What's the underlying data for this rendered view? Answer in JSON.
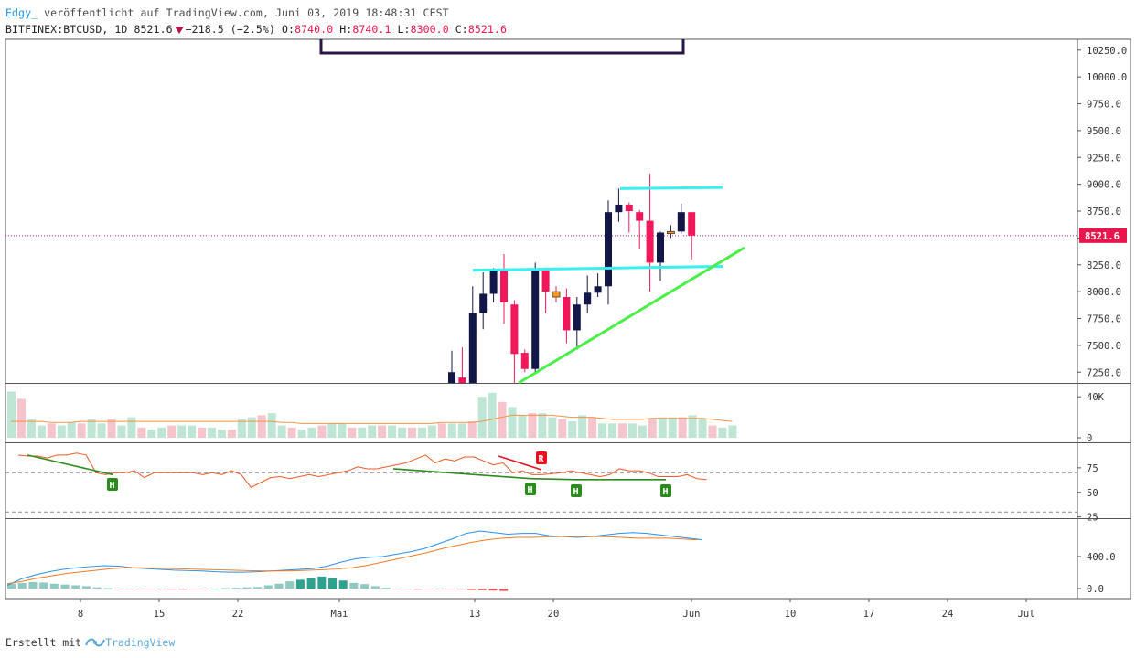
{
  "header": {
    "author": "Edgy_",
    "published_text": "veröffentlicht auf TradingView.com, Juni 03, 2019 18:48:31 CEST",
    "symbol": "BITFINEX:BTCUSD, 1D",
    "last": "8521.6",
    "change": "−218.5 (−2.5%)",
    "o_label": "O:",
    "o_value": "8740.0",
    "h_label": "H:",
    "h_value": "8740.1",
    "l_label": "L:",
    "l_value": "8300.0",
    "c_label": "C:",
    "c_value": "8521.6"
  },
  "footer": {
    "made_with": "Erstellt mit",
    "brand": "TradingView"
  },
  "colors": {
    "up": "#131747",
    "down": "#f0185a",
    "doji": "#ff9a1e",
    "trend_cyan": "#37f0f0",
    "trend_green": "#4aef4a",
    "last_price": "#e8164b"
  },
  "chart_data": {
    "type": "candlestick",
    "y_axis": {
      "ylim": [
        7150,
        10350
      ],
      "ticks": [
        "10250.0",
        "10000.0",
        "9750.0",
        "9500.0",
        "9250.0",
        "9000.0",
        "8750.0",
        "8500.0",
        "8250.0",
        "8000.0",
        "7750.0",
        "7500.0",
        "7250.0"
      ],
      "last_price_label": "8521.6"
    },
    "x_axis": {
      "tick_labels": [
        "8",
        "15",
        "22",
        "Mai",
        "13",
        "20",
        "Jun",
        "10",
        "17",
        "24",
        "Jul"
      ]
    },
    "candles": [
      {
        "date": "2019-05-11",
        "o": 6350,
        "h": 7450,
        "l": 6200,
        "c": 7250
      },
      {
        "date": "2019-05-12",
        "o": 7200,
        "h": 7480,
        "l": 6800,
        "c": 7050
      },
      {
        "date": "2019-05-13",
        "o": 7050,
        "h": 8050,
        "l": 6900,
        "c": 7800
      },
      {
        "date": "2019-05-14",
        "o": 7800,
        "h": 8180,
        "l": 7650,
        "c": 7980
      },
      {
        "date": "2019-05-15",
        "o": 7980,
        "h": 8220,
        "l": 7900,
        "c": 8200
      },
      {
        "date": "2019-05-16",
        "o": 8200,
        "h": 8350,
        "l": 7700,
        "c": 7900
      },
      {
        "date": "2019-05-17",
        "o": 7880,
        "h": 7920,
        "l": 7000,
        "c": 7420
      },
      {
        "date": "2019-05-18",
        "o": 7430,
        "h": 7460,
        "l": 7250,
        "c": 7280
      },
      {
        "date": "2019-05-19",
        "o": 7280,
        "h": 8270,
        "l": 7250,
        "c": 8200
      },
      {
        "date": "2019-05-20",
        "o": 8200,
        "h": 8220,
        "l": 7800,
        "c": 8000
      },
      {
        "date": "2019-05-21",
        "o": 8000,
        "h": 8050,
        "l": 7900,
        "c": 7950
      },
      {
        "date": "2019-05-22",
        "o": 7950,
        "h": 8030,
        "l": 7520,
        "c": 7640
      },
      {
        "date": "2019-05-23",
        "o": 7640,
        "h": 7950,
        "l": 7460,
        "c": 7880
      },
      {
        "date": "2019-05-24",
        "o": 7880,
        "h": 8150,
        "l": 7800,
        "c": 7990
      },
      {
        "date": "2019-05-25",
        "o": 7990,
        "h": 8170,
        "l": 7950,
        "c": 8050
      },
      {
        "date": "2019-05-26",
        "o": 8050,
        "h": 8850,
        "l": 7880,
        "c": 8740
      },
      {
        "date": "2019-05-27",
        "o": 8740,
        "h": 8960,
        "l": 8650,
        "c": 8810
      },
      {
        "date": "2019-05-28",
        "o": 8810,
        "h": 8830,
        "l": 8550,
        "c": 8750
      },
      {
        "date": "2019-05-29",
        "o": 8740,
        "h": 8760,
        "l": 8400,
        "c": 8660
      },
      {
        "date": "2019-05-30",
        "o": 8660,
        "h": 9100,
        "l": 8000,
        "c": 8270
      },
      {
        "date": "2019-05-31",
        "o": 8270,
        "h": 8560,
        "l": 8100,
        "c": 8550
      },
      {
        "date": "2019-06-01",
        "o": 8540,
        "h": 8620,
        "l": 8500,
        "c": 8560
      },
      {
        "date": "2019-06-02",
        "o": 8560,
        "h": 8820,
        "l": 8540,
        "c": 8740
      },
      {
        "date": "2019-06-03",
        "o": 8740,
        "h": 8740,
        "l": 8300,
        "c": 8521.6
      }
    ],
    "volume": {
      "axis_ticks": [
        "40K",
        "0"
      ],
      "values": [
        45,
        38,
        18,
        12,
        14,
        12,
        15,
        14,
        18,
        14,
        18,
        12,
        20,
        10,
        8,
        10,
        12,
        12,
        12,
        10,
        10,
        8,
        8,
        18,
        20,
        22,
        24,
        12,
        10,
        8,
        10,
        12,
        14,
        14,
        10,
        10,
        12,
        12,
        12,
        10,
        10,
        10,
        12,
        14,
        14,
        14,
        16,
        40,
        44,
        35,
        30,
        22,
        24,
        24,
        20,
        18,
        16,
        22,
        20,
        14,
        14,
        14,
        14,
        12,
        18,
        20,
        20,
        20,
        22,
        18,
        12,
        10,
        12
      ],
      "volume_ma": [
        16,
        16,
        16,
        16,
        15,
        15,
        15,
        16,
        16,
        16,
        16,
        16,
        16,
        16,
        16,
        16,
        16,
        16,
        16,
        16,
        16,
        16,
        16,
        16,
        16,
        16,
        16,
        15,
        15,
        14,
        14,
        14,
        14,
        14,
        14,
        14,
        14,
        14,
        14,
        14,
        14,
        14,
        14,
        15,
        15,
        15,
        15,
        16,
        18,
        20,
        22,
        22,
        22,
        22,
        22,
        21,
        20,
        20,
        20,
        19,
        18,
        18,
        18,
        18,
        19,
        19,
        19,
        19,
        19,
        19,
        18,
        17,
        16
      ]
    },
    "rsi": {
      "axis_ticks": [
        "75",
        "50",
        "25"
      ],
      "reference_lines": [
        70,
        30
      ],
      "values": [
        88,
        87,
        87,
        85,
        88,
        88,
        90,
        88,
        70,
        68,
        70,
        70,
        72,
        65,
        70,
        70,
        70,
        70,
        70,
        68,
        70,
        68,
        72,
        68,
        55,
        60,
        65,
        66,
        64,
        66,
        68,
        66,
        68,
        70,
        72,
        76,
        74,
        74,
        76,
        78,
        80,
        84,
        88,
        80,
        84,
        82,
        86,
        86,
        82,
        78,
        80,
        70,
        72,
        68,
        68,
        69,
        70,
        72,
        70,
        68,
        66,
        68,
        74,
        72,
        72,
        70,
        66,
        66,
        66,
        68,
        64,
        63
      ],
      "markers": [
        {
          "type": "H",
          "label": "H"
        },
        {
          "type": "H",
          "label": "H"
        },
        {
          "type": "H",
          "label": "H"
        },
        {
          "type": "H",
          "label": "H"
        },
        {
          "type": "R",
          "label": "R"
        }
      ]
    },
    "macd": {
      "axis_ticks": [
        "400.0",
        "0.0"
      ],
      "macd": [
        40,
        120,
        170,
        210,
        240,
        260,
        275,
        285,
        280,
        260,
        250,
        240,
        230,
        225,
        220,
        210,
        205,
        205,
        210,
        220,
        230,
        240,
        250,
        280,
        330,
        370,
        390,
        400,
        430,
        460,
        500,
        560,
        620,
        690,
        720,
        700,
        680,
        690,
        690,
        660,
        650,
        640,
        650,
        670,
        690,
        700,
        690,
        670,
        650,
        630,
        610
      ],
      "signal": [
        60,
        90,
        130,
        160,
        190,
        210,
        230,
        250,
        260,
        260,
        255,
        250,
        245,
        240,
        235,
        230,
        225,
        220,
        220,
        222,
        228,
        235,
        245,
        260,
        290,
        330,
        370,
        410,
        450,
        500,
        540,
        580,
        610,
        630,
        640,
        640,
        645,
        650,
        655,
        650,
        648,
        640,
        630,
        630,
        630,
        620,
        610
      ],
      "histogram": [
        60,
        70,
        80,
        75,
        60,
        50,
        40,
        30,
        15,
        5,
        -3,
        -5,
        -8,
        -10,
        -12,
        -15,
        -15,
        -10,
        -5,
        0,
        5,
        10,
        15,
        20,
        40,
        60,
        90,
        110,
        130,
        150,
        130,
        100,
        70,
        55,
        30,
        10,
        -5,
        -10,
        -15,
        -10,
        -5,
        -8,
        -12,
        -18,
        -20,
        -25,
        -30
      ]
    }
  }
}
